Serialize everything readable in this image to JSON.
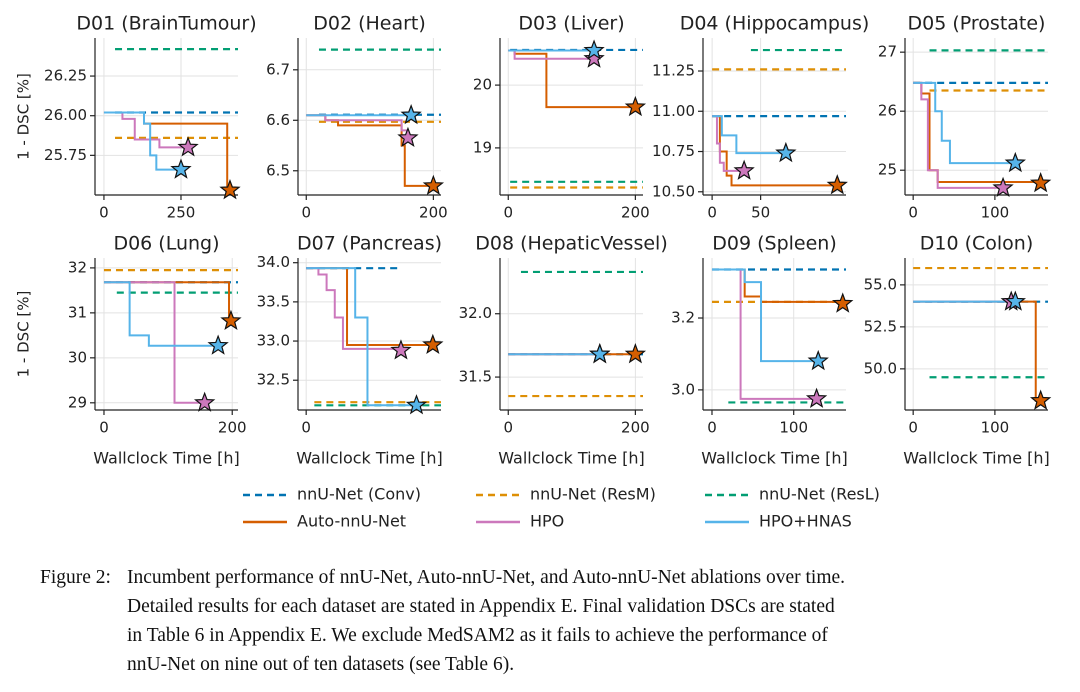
{
  "legend": [
    {
      "name": "nnU-Net (Conv)",
      "color": "#0173b2",
      "dashed": true
    },
    {
      "name": "nnU-Net (ResM)",
      "color": "#de8f05",
      "dashed": true
    },
    {
      "name": "nnU-Net (ResL)",
      "color": "#029e73",
      "dashed": true
    },
    {
      "name": "Auto-nnU-Net",
      "color": "#d55e00",
      "dashed": false
    },
    {
      "name": "HPO",
      "color": "#cc78bc",
      "dashed": false
    },
    {
      "name": "HPO+HNAS",
      "color": "#56b4e9",
      "dashed": false
    }
  ],
  "caption": {
    "label": "Figure 2:",
    "lines": [
      "Incumbent performance of nnU-Net, Auto-nnU-Net, and Auto-nnU-Net ablations over time.",
      "Detailed results for each dataset are stated in Appendix E. Final validation DSCs are stated",
      "in Table 6 in Appendix E. We exclude MedSAM2 as it fails to achieve the performance of",
      "nnU-Net on nine out of ten datasets (see Table 6)."
    ]
  },
  "chart_data": [
    {
      "type": "step",
      "title": "D01 (BrainTumour)",
      "ylabel": "1 - DSC [%]",
      "xlim": [
        -29,
        435
      ],
      "ylim": [
        25.5,
        26.49
      ],
      "xticks": [
        0,
        250
      ],
      "yticks": [
        25.75,
        {
          "value": 26,
          "label": "26.00"
        },
        26.25
      ],
      "series": [
        {
          "x": [
            36,
            435
          ],
          "values": [
            26.02,
            26.02
          ]
        },
        {
          "x": [
            36,
            435
          ],
          "values": [
            25.86,
            25.86
          ]
        },
        {
          "x": [
            36,
            435
          ],
          "values": [
            26.42,
            26.42
          ]
        },
        {
          "x": [
            0,
            130,
            400,
            409
          ],
          "values": [
            26.02,
            25.95,
            25.53,
            25.53
          ]
        },
        {
          "x": [
            0,
            60,
            100,
            180,
            273
          ],
          "values": [
            26.02,
            25.98,
            25.85,
            25.8,
            25.8
          ]
        },
        {
          "x": [
            0,
            130,
            150,
            170,
            250
          ],
          "values": [
            26.02,
            25.95,
            25.75,
            25.66,
            25.66
          ]
        }
      ]
    },
    {
      "type": "step",
      "title": "D02 (Heart)",
      "xlim": [
        -13,
        212
      ],
      "ylim": [
        6.452,
        6.763
      ],
      "xticks": [
        0,
        200
      ],
      "yticks": [
        6.5,
        6.6,
        6.7
      ],
      "series": [
        {
          "x": [
            20,
            212
          ],
          "values": [
            6.611,
            6.611
          ]
        },
        {
          "x": [
            20,
            212
          ],
          "values": [
            6.597,
            6.597
          ]
        },
        {
          "x": [
            20,
            212
          ],
          "values": [
            6.74,
            6.74
          ]
        },
        {
          "x": [
            0,
            30,
            50,
            150,
            155,
            200
          ],
          "values": [
            6.61,
            6.6,
            6.59,
            6.55,
            6.47,
            6.47
          ]
        },
        {
          "x": [
            0,
            30,
            150,
            160
          ],
          "values": [
            6.61,
            6.6,
            6.58,
            6.565
          ]
        },
        {
          "x": [
            0,
            165
          ],
          "values": [
            6.61,
            6.61
          ]
        }
      ]
    },
    {
      "type": "step",
      "title": "D03 (Liver)",
      "xlim": [
        -13,
        212
      ],
      "ylim": [
        18.25,
        20.75
      ],
      "xticks": [
        0,
        200
      ],
      "yticks": [
        19,
        20
      ],
      "series": [
        {
          "x": [
            3,
            212
          ],
          "values": [
            20.56,
            20.56
          ]
        },
        {
          "x": [
            3,
            212
          ],
          "values": [
            18.37,
            18.37
          ]
        },
        {
          "x": [
            3,
            212
          ],
          "values": [
            18.46,
            18.46
          ]
        },
        {
          "x": [
            0,
            10,
            60,
            200
          ],
          "values": [
            20.55,
            20.5,
            19.65,
            19.65
          ]
        },
        {
          "x": [
            0,
            10,
            135
          ],
          "values": [
            20.55,
            20.42,
            20.42
          ]
        },
        {
          "x": [
            0,
            135
          ],
          "values": [
            20.55,
            20.55
          ]
        }
      ]
    },
    {
      "type": "step",
      "title": "D04 (Hippocampus)",
      "xlim": [
        -9.4,
        138
      ],
      "ylim": [
        10.48,
        11.455
      ],
      "xticks": [
        0,
        50
      ],
      "yticks": [
        {
          "value": 10.5,
          "label": "10.50"
        },
        10.75,
        {
          "value": 11,
          "label": "11.00"
        },
        11.25
      ],
      "series": [
        {
          "x": [
            0,
            138
          ],
          "values": [
            10.97,
            10.97
          ]
        },
        {
          "x": [
            0,
            138
          ],
          "values": [
            11.26,
            11.26
          ]
        },
        {
          "x": [
            40,
            138
          ],
          "values": [
            11.38,
            11.38
          ]
        },
        {
          "x": [
            0,
            8,
            15,
            20,
            129
          ],
          "values": [
            10.97,
            10.75,
            10.6,
            10.54,
            10.54
          ]
        },
        {
          "x": [
            0,
            5,
            8,
            12,
            33
          ],
          "values": [
            10.97,
            10.8,
            10.68,
            10.63,
            10.63
          ]
        },
        {
          "x": [
            0,
            10,
            25,
            76
          ],
          "values": [
            10.97,
            10.85,
            10.74,
            10.74
          ]
        }
      ]
    },
    {
      "type": "step",
      "title": "D05 (Prostate)",
      "xlim": [
        -10,
        165
      ],
      "ylim": [
        24.58,
        27.24
      ],
      "xticks": [
        0,
        100
      ],
      "yticks": [
        25,
        26,
        27
      ],
      "series": [
        {
          "x": [
            0,
            165
          ],
          "values": [
            26.48,
            26.48
          ]
        },
        {
          "x": [
            20,
            165
          ],
          "values": [
            26.35,
            26.35
          ]
        },
        {
          "x": [
            20,
            165
          ],
          "values": [
            27.03,
            27.03
          ]
        },
        {
          "x": [
            0,
            10,
            20,
            30,
            156
          ],
          "values": [
            26.48,
            26.3,
            25.0,
            24.8,
            24.78
          ]
        },
        {
          "x": [
            0,
            10,
            18,
            30,
            110
          ],
          "values": [
            26.48,
            26.2,
            25.0,
            24.7,
            24.7
          ]
        },
        {
          "x": [
            0,
            27,
            35,
            45,
            125
          ],
          "values": [
            26.48,
            26.0,
            25.5,
            25.12,
            25.12
          ]
        }
      ]
    },
    {
      "type": "step",
      "title": "D06 (Lung)",
      "ylabel": "1 - DSC [%]",
      "xlabel": "Wallclock Time [h]",
      "xlim": [
        -14,
        209
      ],
      "ylim": [
        28.84,
        32.22
      ],
      "xticks": [
        0,
        200
      ],
      "yticks": [
        29,
        30,
        31,
        32
      ],
      "series": [
        {
          "x": [
            0,
            209
          ],
          "values": [
            31.68,
            31.68
          ]
        },
        {
          "x": [
            0,
            209
          ],
          "values": [
            31.95,
            31.95
          ]
        },
        {
          "x": [
            20,
            209
          ],
          "values": [
            31.45,
            31.45
          ]
        },
        {
          "x": [
            0,
            195,
            198
          ],
          "values": [
            31.68,
            30.82,
            30.82
          ]
        },
        {
          "x": [
            0,
            110,
            157
          ],
          "values": [
            31.68,
            29.0,
            29.0
          ]
        },
        {
          "x": [
            0,
            40,
            70,
            178
          ],
          "values": [
            31.68,
            30.5,
            30.27,
            30.27
          ]
        }
      ]
    },
    {
      "type": "step",
      "title": "D07 (Pancreas)",
      "xlabel": "Wallclock Time [h]",
      "xlim": [
        -10,
        165
      ],
      "ylim": [
        32.12,
        34.06
      ],
      "xticks": [
        0
      ],
      "yticks": [
        32.5,
        {
          "value": 33,
          "label": "33.0"
        },
        33.5,
        {
          "value": 34,
          "label": "34.0"
        }
      ],
      "series": [
        {
          "x": [
            0,
            112
          ],
          "values": [
            33.93,
            33.93
          ]
        },
        {
          "x": [
            10,
            165
          ],
          "values": [
            32.22,
            32.22
          ]
        },
        {
          "x": [
            10,
            165
          ],
          "values": [
            32.18,
            32.18
          ]
        },
        {
          "x": [
            0,
            50,
            155
          ],
          "values": [
            33.93,
            32.95,
            32.95
          ]
        },
        {
          "x": [
            0,
            15,
            25,
            35,
            45,
            116
          ],
          "values": [
            33.93,
            33.85,
            33.65,
            33.3,
            32.9,
            32.88
          ]
        },
        {
          "x": [
            0,
            60,
            75,
            135
          ],
          "values": [
            33.93,
            33.3,
            32.18,
            32.18
          ]
        }
      ]
    },
    {
      "type": "step",
      "title": "D08 (HepaticVessel)",
      "xlabel": "Wallclock Time [h]",
      "xlim": [
        -13,
        212
      ],
      "ylim": [
        31.24,
        32.44
      ],
      "xticks": [
        0,
        200
      ],
      "yticks": [
        31.5,
        {
          "value": 32,
          "label": "32.0"
        }
      ],
      "series": [
        {
          "x": [
            0,
            212
          ],
          "values": [
            31.68,
            31.68
          ]
        },
        {
          "x": [
            0,
            212
          ],
          "values": [
            31.35,
            31.35
          ]
        },
        {
          "x": [
            20,
            212
          ],
          "values": [
            32.33,
            32.33
          ]
        },
        {
          "x": [
            0,
            200
          ],
          "values": [
            31.68,
            31.68
          ]
        },
        {
          "x": [
            0,
            144
          ],
          "values": [
            31.68,
            31.68
          ]
        },
        {
          "x": [
            0,
            144
          ],
          "values": [
            31.68,
            31.68
          ]
        }
      ]
    },
    {
      "type": "step",
      "title": "D09 (Spleen)",
      "xlabel": "Wallclock Time [h]",
      "xlim": [
        -11,
        164
      ],
      "ylim": [
        2.944,
        3.367
      ],
      "xticks": [
        0,
        100
      ],
      "yticks": [
        {
          "value": 3,
          "label": "3.0"
        },
        3.2
      ],
      "series": [
        {
          "x": [
            0,
            164
          ],
          "values": [
            3.335,
            3.335
          ]
        },
        {
          "x": [
            0,
            164
          ],
          "values": [
            3.245,
            3.245
          ]
        },
        {
          "x": [
            20,
            164
          ],
          "values": [
            2.965,
            2.965
          ]
        },
        {
          "x": [
            0,
            40,
            60,
            160
          ],
          "values": [
            3.335,
            3.26,
            3.245,
            3.24
          ]
        },
        {
          "x": [
            0,
            35,
            128
          ],
          "values": [
            3.335,
            2.975,
            2.975
          ]
        },
        {
          "x": [
            0,
            40,
            60,
            130
          ],
          "values": [
            3.335,
            3.3,
            3.08,
            3.08
          ]
        }
      ]
    },
    {
      "type": "step",
      "title": "D10 (Colon)",
      "xlabel": "Wallclock Time [h]",
      "xlim": [
        -10,
        165
      ],
      "ylim": [
        47.55,
        56.6
      ],
      "xticks": [
        0,
        100
      ],
      "yticks": [
        {
          "value": 50,
          "label": "50.0"
        },
        52.5,
        {
          "value": 55,
          "label": "55.0"
        }
      ],
      "series": [
        {
          "x": [
            0,
            165
          ],
          "values": [
            54,
            54
          ]
        },
        {
          "x": [
            0,
            165
          ],
          "values": [
            56,
            56
          ]
        },
        {
          "x": [
            20,
            165
          ],
          "values": [
            49.5,
            49.5
          ]
        },
        {
          "x": [
            0,
            150,
            156
          ],
          "values": [
            54,
            48.1,
            48.1
          ]
        },
        {
          "x": [
            0,
            120
          ],
          "values": [
            54,
            54
          ]
        },
        {
          "x": [
            0,
            125
          ],
          "values": [
            54,
            54
          ]
        }
      ]
    }
  ]
}
